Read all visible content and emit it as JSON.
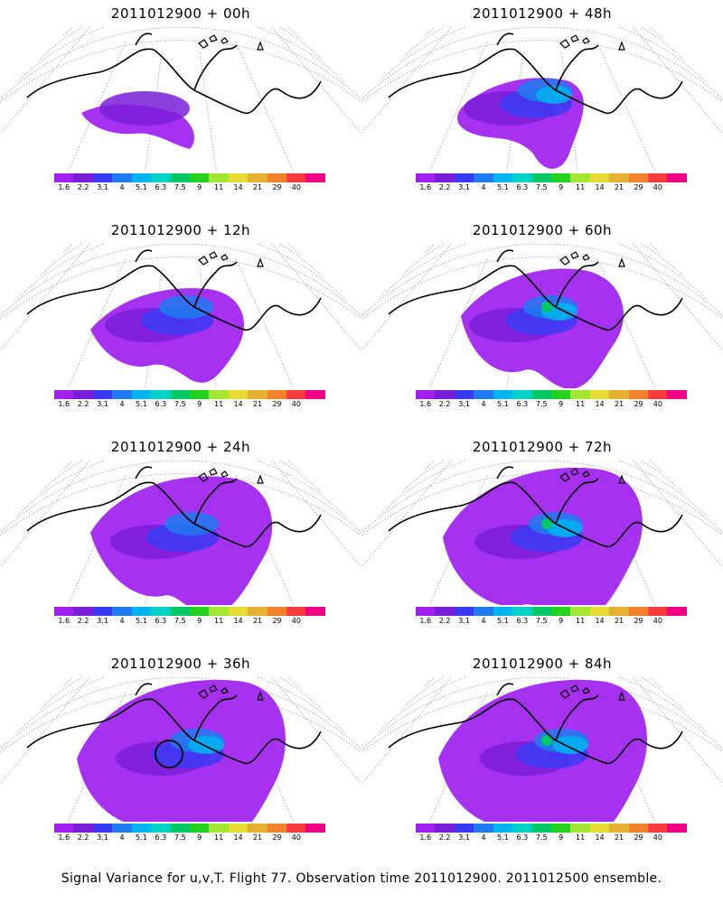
{
  "figure_caption": "Signal Variance for u,v,T. Flight 77. Observation time 2011012900. 2011012500 ensemble.",
  "colorbar": {
    "labels": [
      "1.6",
      "2.2",
      "3.1",
      "4",
      "5.1",
      "6.3",
      "7.5",
      "9",
      "11",
      "14",
      "21",
      "29",
      "40"
    ],
    "colors": [
      "#a020f0",
      "#7a1ed8",
      "#3a3af5",
      "#1e7cf0",
      "#00b4f0",
      "#00d2c8",
      "#00c864",
      "#24d21e",
      "#a0e632",
      "#e6dc32",
      "#e6af2d",
      "#f08228",
      "#fa3c3c",
      "#f00082"
    ]
  },
  "panels": [
    {
      "title": "2011012900 + 00h",
      "forecast_hour": 0,
      "max_level": 1
    },
    {
      "title": "2011012900 + 48h",
      "forecast_hour": 48,
      "max_level": 4
    },
    {
      "title": "2011012900 + 12h",
      "forecast_hour": 12,
      "max_level": 3
    },
    {
      "title": "2011012900 + 60h",
      "forecast_hour": 60,
      "max_level": 6
    },
    {
      "title": "2011012900 + 24h",
      "forecast_hour": 24,
      "max_level": 3
    },
    {
      "title": "2011012900 + 72h",
      "forecast_hour": 72,
      "max_level": 7
    },
    {
      "title": "2011012900 + 36h",
      "forecast_hour": 36,
      "max_level": 4
    },
    {
      "title": "2011012900 + 84h",
      "forecast_hour": 84,
      "max_level": 7
    }
  ]
}
